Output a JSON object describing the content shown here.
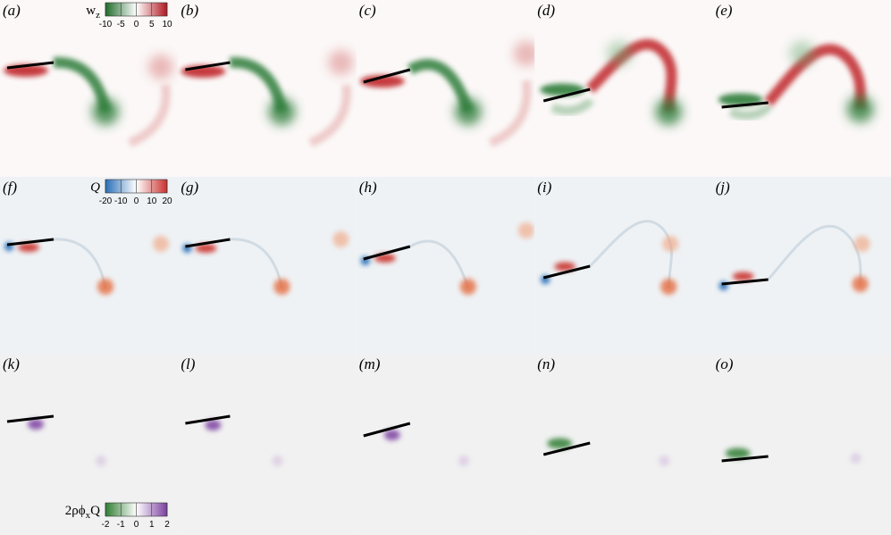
{
  "rows": [
    {
      "panels": [
        "(a)",
        "(b)",
        "(c)",
        "(d)",
        "(e)"
      ],
      "colorbar": {
        "label": "w",
        "label_sub": "z",
        "ticks": [
          -10,
          -5,
          0,
          5,
          10
        ]
      }
    },
    {
      "panels": [
        "(f)",
        "(g)",
        "(h)",
        "(i)",
        "(j)"
      ],
      "colorbar": {
        "label": "Q",
        "ticks": [
          -20,
          -10,
          0,
          10,
          20
        ]
      }
    },
    {
      "panels": [
        "(k)",
        "(l)",
        "(m)",
        "(n)",
        "(o)"
      ],
      "colorbar": {
        "label": "2ρϕ",
        "label_sub": "x",
        "label_end": "Q",
        "ticks": [
          -2,
          -1,
          0,
          1,
          2
        ]
      }
    }
  ]
}
